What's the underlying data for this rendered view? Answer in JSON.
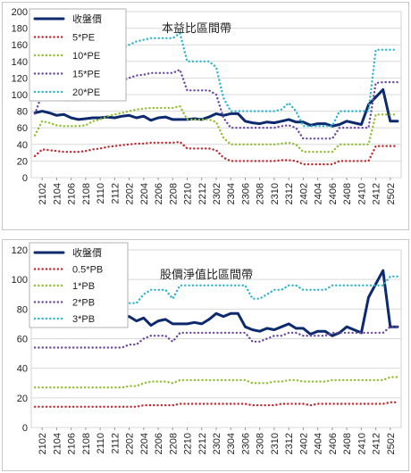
{
  "chart_data": [
    {
      "type": "line",
      "title": "本益比區間帶",
      "x": [
        "2101",
        "2102",
        "2103",
        "2104",
        "2105",
        "2106",
        "2107",
        "2108",
        "2109",
        "2110",
        "2111",
        "2112",
        "2201",
        "2202",
        "2203",
        "2204",
        "2205",
        "2206",
        "2207",
        "2208",
        "2209",
        "2210",
        "2211",
        "2212",
        "2301",
        "2302",
        "2303",
        "2304",
        "2305",
        "2306",
        "2307",
        "2308",
        "2309",
        "2310",
        "2311",
        "2312",
        "2401",
        "2402",
        "2403",
        "2404",
        "2405",
        "2406",
        "2407",
        "2408",
        "2409",
        "2410",
        "2411",
        "2412",
        "2501",
        "2502",
        "2503"
      ],
      "xtick_labels": [
        "2102",
        "2104",
        "2106",
        "2108",
        "2110",
        "2112",
        "2202",
        "2204",
        "2206",
        "2208",
        "2210",
        "2212",
        "2302",
        "2304",
        "2306",
        "2308",
        "2310",
        "2312",
        "2402",
        "2404",
        "2406",
        "2408",
        "2410",
        "2412",
        "2502"
      ],
      "yticks": [
        0,
        20,
        40,
        60,
        80,
        100,
        120,
        140,
        160,
        180,
        200
      ],
      "ylim": [
        0,
        200
      ],
      "grid": true,
      "legend_position": "top-left",
      "series": [
        {
          "name": "收盤價",
          "color": "#0d2a6e",
          "style": "solid",
          "values": [
            78,
            80,
            78,
            75,
            76,
            72,
            70,
            71,
            72,
            72,
            73,
            72,
            74,
            75,
            72,
            74,
            69,
            72,
            73,
            70,
            70,
            70,
            71,
            70,
            73,
            77,
            75,
            77,
            77,
            68,
            66,
            65,
            67,
            66,
            68,
            70,
            67,
            67,
            63,
            65,
            65,
            62,
            64,
            68,
            66,
            64,
            88,
            97,
            106,
            68,
            68
          ]
        },
        {
          "name": "5*PE",
          "color": "#c0282d",
          "style": "dotted",
          "values": [
            26,
            34,
            33,
            32,
            31,
            31,
            31,
            32,
            34,
            35,
            37,
            38,
            39,
            40,
            41,
            41,
            42,
            42,
            42,
            42,
            43,
            35,
            35,
            35,
            35,
            33,
            24,
            20,
            20,
            20,
            20,
            20,
            20,
            20,
            21,
            21,
            20,
            16,
            16,
            16,
            16,
            16,
            20,
            20,
            20,
            20,
            20,
            38,
            38,
            38,
            38
          ]
        },
        {
          "name": "10*PE",
          "color": "#8fbf2f",
          "style": "dotted",
          "values": [
            51,
            68,
            66,
            63,
            62,
            62,
            62,
            63,
            68,
            70,
            74,
            76,
            78,
            80,
            82,
            83,
            84,
            84,
            84,
            84,
            86,
            70,
            70,
            70,
            70,
            67,
            48,
            40,
            40,
            40,
            40,
            40,
            40,
            40,
            41,
            42,
            40,
            31,
            31,
            31,
            31,
            31,
            40,
            40,
            40,
            40,
            40,
            76,
            76,
            76,
            76
          ]
        },
        {
          "name": "15*PE",
          "color": "#6b4aa0",
          "style": "dotted",
          "values": [
            77,
            101,
            98,
            95,
            93,
            93,
            93,
            95,
            102,
            105,
            111,
            114,
            117,
            120,
            123,
            124,
            126,
            126,
            126,
            126,
            130,
            105,
            105,
            105,
            105,
            100,
            72,
            60,
            60,
            60,
            60,
            60,
            60,
            60,
            62,
            63,
            60,
            47,
            47,
            47,
            47,
            47,
            60,
            60,
            60,
            60,
            60,
            114,
            115,
            115,
            115
          ]
        },
        {
          "name": "20*PE",
          "color": "#2fb4cf",
          "style": "dotted",
          "values": [
            102,
            135,
            131,
            126,
            124,
            124,
            124,
            126,
            136,
            140,
            148,
            152,
            156,
            160,
            164,
            166,
            168,
            168,
            168,
            168,
            174,
            140,
            140,
            140,
            140,
            133,
            96,
            80,
            80,
            80,
            80,
            80,
            80,
            80,
            82,
            90,
            80,
            62,
            62,
            62,
            62,
            62,
            80,
            80,
            80,
            80,
            80,
            154,
            154,
            154,
            154
          ]
        }
      ]
    },
    {
      "type": "line",
      "title": "股價淨值比區間帶",
      "x": [
        "2101",
        "2102",
        "2103",
        "2104",
        "2105",
        "2106",
        "2107",
        "2108",
        "2109",
        "2110",
        "2111",
        "2112",
        "2201",
        "2202",
        "2203",
        "2204",
        "2205",
        "2206",
        "2207",
        "2208",
        "2209",
        "2210",
        "2211",
        "2212",
        "2301",
        "2302",
        "2303",
        "2304",
        "2305",
        "2306",
        "2307",
        "2308",
        "2309",
        "2310",
        "2311",
        "2312",
        "2401",
        "2402",
        "2403",
        "2404",
        "2405",
        "2406",
        "2407",
        "2408",
        "2409",
        "2410",
        "2411",
        "2412",
        "2501",
        "2502",
        "2503"
      ],
      "xtick_labels": [
        "2102",
        "2104",
        "2106",
        "2108",
        "2110",
        "2112",
        "2202",
        "2204",
        "2206",
        "2208",
        "2210",
        "2212",
        "2302",
        "2304",
        "2306",
        "2308",
        "2310",
        "2312",
        "2402",
        "2404",
        "2406",
        "2408",
        "2410",
        "2412",
        "2502"
      ],
      "yticks": [
        0,
        20,
        40,
        60,
        80,
        100,
        120
      ],
      "ylim": [
        0,
        120
      ],
      "grid": true,
      "legend_position": "top-left",
      "series": [
        {
          "name": "收盤價",
          "color": "#0d2a6e",
          "style": "solid",
          "values": [
            78,
            80,
            78,
            75,
            76,
            72,
            70,
            71,
            72,
            72,
            73,
            72,
            74,
            75,
            72,
            74,
            69,
            72,
            73,
            70,
            70,
            70,
            71,
            70,
            73,
            77,
            75,
            77,
            77,
            68,
            66,
            65,
            67,
            66,
            68,
            70,
            67,
            67,
            63,
            65,
            65,
            62,
            64,
            68,
            66,
            64,
            88,
            97,
            106,
            68,
            68
          ]
        },
        {
          "name": "0.5*PB",
          "color": "#c0282d",
          "style": "dotted",
          "values": [
            14,
            14,
            14,
            14,
            14,
            14,
            14,
            14,
            14,
            14,
            14,
            14,
            14,
            14,
            14,
            15,
            15,
            15,
            15,
            15,
            16,
            16,
            16,
            16,
            16,
            16,
            16,
            16,
            16,
            16,
            15,
            15,
            15,
            15,
            16,
            16,
            16,
            16,
            15,
            16,
            16,
            16,
            16,
            16,
            16,
            16,
            16,
            16,
            16,
            17,
            17
          ]
        },
        {
          "name": "1*PB",
          "color": "#8fbf2f",
          "style": "dotted",
          "values": [
            27,
            27,
            27,
            27,
            27,
            27,
            27,
            27,
            27,
            27,
            27,
            27,
            27,
            28,
            28,
            30,
            31,
            31,
            31,
            30,
            32,
            32,
            32,
            32,
            32,
            32,
            32,
            32,
            32,
            32,
            30,
            30,
            30,
            31,
            31,
            32,
            32,
            31,
            31,
            31,
            31,
            32,
            32,
            32,
            32,
            32,
            32,
            32,
            32,
            34,
            34
          ]
        },
        {
          "name": "2*PB",
          "color": "#6b4aa0",
          "style": "dotted",
          "values": [
            54,
            54,
            54,
            54,
            54,
            54,
            54,
            54,
            54,
            54,
            54,
            54,
            54,
            56,
            56,
            60,
            62,
            62,
            62,
            58,
            64,
            64,
            64,
            64,
            64,
            64,
            64,
            64,
            64,
            64,
            58,
            58,
            60,
            62,
            62,
            64,
            64,
            62,
            62,
            62,
            62,
            64,
            64,
            64,
            64,
            64,
            64,
            64,
            64,
            68,
            68
          ]
        },
        {
          "name": "3*PB",
          "color": "#2fb4cf",
          "style": "dotted",
          "values": [
            81,
            81,
            81,
            81,
            81,
            81,
            81,
            81,
            81,
            81,
            81,
            81,
            81,
            84,
            84,
            90,
            93,
            93,
            93,
            87,
            96,
            96,
            96,
            96,
            96,
            96,
            96,
            96,
            96,
            96,
            87,
            87,
            90,
            93,
            93,
            96,
            96,
            93,
            93,
            93,
            93,
            96,
            96,
            96,
            96,
            96,
            96,
            96,
            96,
            102,
            102
          ]
        }
      ]
    }
  ]
}
